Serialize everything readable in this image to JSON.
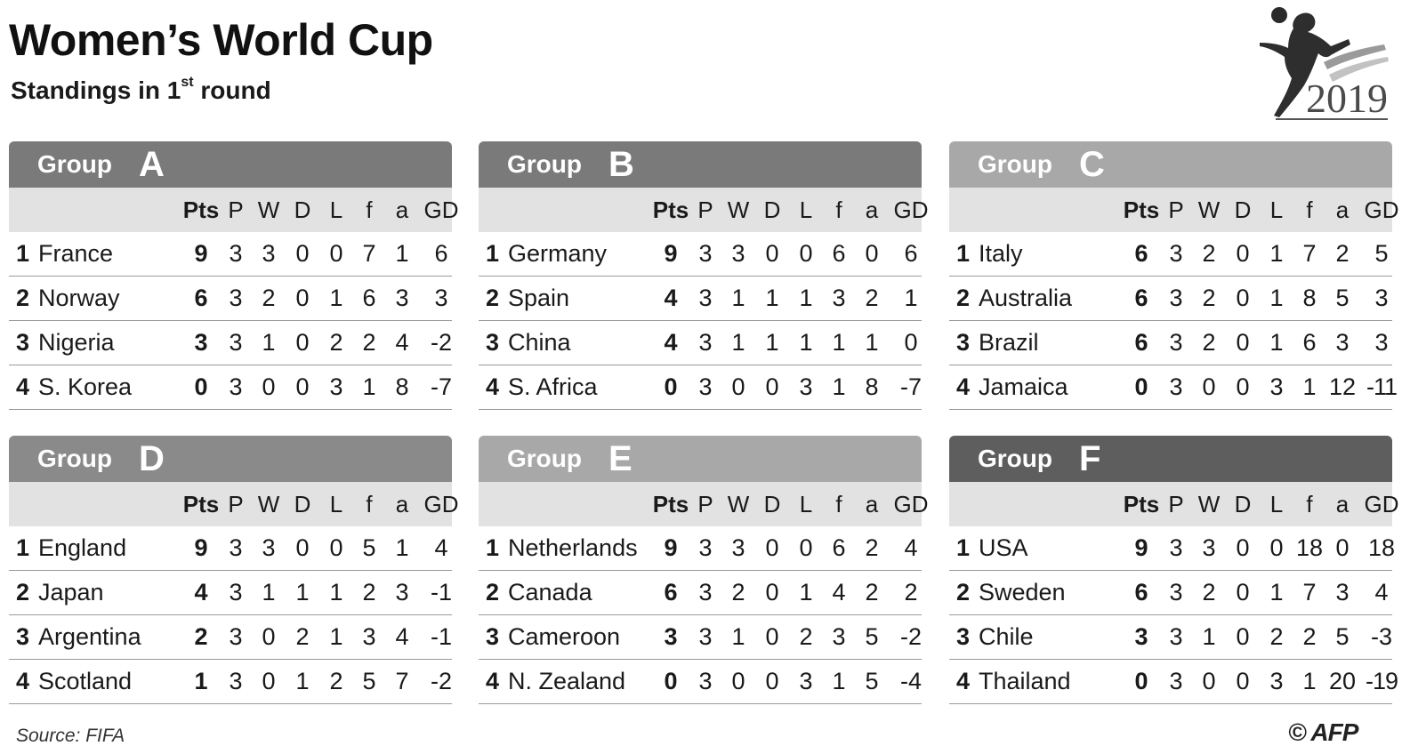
{
  "title": "Women’s World Cup",
  "subtitle": {
    "text": "Standings in 1",
    "sup": "st",
    "rest": " round"
  },
  "logo_year": "2019",
  "columns": [
    "Pts",
    "P",
    "W",
    "D",
    "L",
    "f",
    "a",
    "GD"
  ],
  "source": "Source: FIFA",
  "credit": "© AFP",
  "group_word": "Group",
  "groups": [
    {
      "letter": "A",
      "header_color": "#7a7a7a",
      "rows": [
        {
          "pos": "1",
          "team": "France",
          "vals": [
            "9",
            "3",
            "3",
            "0",
            "0",
            "7",
            "1",
            "6"
          ]
        },
        {
          "pos": "2",
          "team": "Norway",
          "vals": [
            "6",
            "3",
            "2",
            "0",
            "1",
            "6",
            "3",
            "3"
          ]
        },
        {
          "pos": "3",
          "team": "Nigeria",
          "vals": [
            "3",
            "3",
            "1",
            "0",
            "2",
            "2",
            "4",
            "-2"
          ]
        },
        {
          "pos": "4",
          "team": "S. Korea",
          "vals": [
            "0",
            "3",
            "0",
            "0",
            "3",
            "1",
            "8",
            "-7"
          ]
        }
      ]
    },
    {
      "letter": "B",
      "header_color": "#7a7a7a",
      "rows": [
        {
          "pos": "1",
          "team": "Germany",
          "vals": [
            "9",
            "3",
            "3",
            "0",
            "0",
            "6",
            "0",
            "6"
          ]
        },
        {
          "pos": "2",
          "team": "Spain",
          "vals": [
            "4",
            "3",
            "1",
            "1",
            "1",
            "3",
            "2",
            "1"
          ]
        },
        {
          "pos": "3",
          "team": "China",
          "vals": [
            "4",
            "3",
            "1",
            "1",
            "1",
            "1",
            "1",
            "0"
          ]
        },
        {
          "pos": "4",
          "team": "S. Africa",
          "vals": [
            "0",
            "3",
            "0",
            "0",
            "3",
            "1",
            "8",
            "-7"
          ]
        }
      ]
    },
    {
      "letter": "C",
      "header_color": "#a8a8a8",
      "rows": [
        {
          "pos": "1",
          "team": "Italy",
          "vals": [
            "6",
            "3",
            "2",
            "0",
            "1",
            "7",
            "2",
            "5"
          ]
        },
        {
          "pos": "2",
          "team": "Australia",
          "vals": [
            "6",
            "3",
            "2",
            "0",
            "1",
            "8",
            "5",
            "3"
          ]
        },
        {
          "pos": "3",
          "team": "Brazil",
          "vals": [
            "6",
            "3",
            "2",
            "0",
            "1",
            "6",
            "3",
            "3"
          ]
        },
        {
          "pos": "4",
          "team": "Jamaica",
          "vals": [
            "0",
            "3",
            "0",
            "0",
            "3",
            "1",
            "12",
            "-11"
          ]
        }
      ]
    },
    {
      "letter": "D",
      "header_color": "#8a8a8a",
      "rows": [
        {
          "pos": "1",
          "team": "England",
          "vals": [
            "9",
            "3",
            "3",
            "0",
            "0",
            "5",
            "1",
            "4"
          ]
        },
        {
          "pos": "2",
          "team": "Japan",
          "vals": [
            "4",
            "3",
            "1",
            "1",
            "1",
            "2",
            "3",
            "-1"
          ]
        },
        {
          "pos": "3",
          "team": "Argentina",
          "vals": [
            "2",
            "3",
            "0",
            "2",
            "1",
            "3",
            "4",
            "-1"
          ]
        },
        {
          "pos": "4",
          "team": "Scotland",
          "vals": [
            "1",
            "3",
            "0",
            "1",
            "2",
            "5",
            "7",
            "-2"
          ]
        }
      ]
    },
    {
      "letter": "E",
      "header_color": "#a8a8a8",
      "rows": [
        {
          "pos": "1",
          "team": "Netherlands",
          "vals": [
            "9",
            "3",
            "3",
            "0",
            "0",
            "6",
            "2",
            "4"
          ]
        },
        {
          "pos": "2",
          "team": "Canada",
          "vals": [
            "6",
            "3",
            "2",
            "0",
            "1",
            "4",
            "2",
            "2"
          ]
        },
        {
          "pos": "3",
          "team": "Cameroon",
          "vals": [
            "3",
            "3",
            "1",
            "0",
            "2",
            "3",
            "5",
            "-2"
          ]
        },
        {
          "pos": "4",
          "team": "N. Zealand",
          "vals": [
            "0",
            "3",
            "0",
            "0",
            "3",
            "1",
            "5",
            "-4"
          ]
        }
      ]
    },
    {
      "letter": "F",
      "header_color": "#5e5e5e",
      "rows": [
        {
          "pos": "1",
          "team": "USA",
          "vals": [
            "9",
            "3",
            "3",
            "0",
            "0",
            "18",
            "0",
            "18"
          ]
        },
        {
          "pos": "2",
          "team": "Sweden",
          "vals": [
            "6",
            "3",
            "2",
            "0",
            "1",
            "7",
            "3",
            "4"
          ]
        },
        {
          "pos": "3",
          "team": "Chile",
          "vals": [
            "3",
            "3",
            "1",
            "0",
            "2",
            "2",
            "5",
            "-3"
          ]
        },
        {
          "pos": "4",
          "team": "Thailand",
          "vals": [
            "0",
            "3",
            "0",
            "0",
            "3",
            "1",
            "20",
            "-19"
          ]
        }
      ]
    }
  ]
}
